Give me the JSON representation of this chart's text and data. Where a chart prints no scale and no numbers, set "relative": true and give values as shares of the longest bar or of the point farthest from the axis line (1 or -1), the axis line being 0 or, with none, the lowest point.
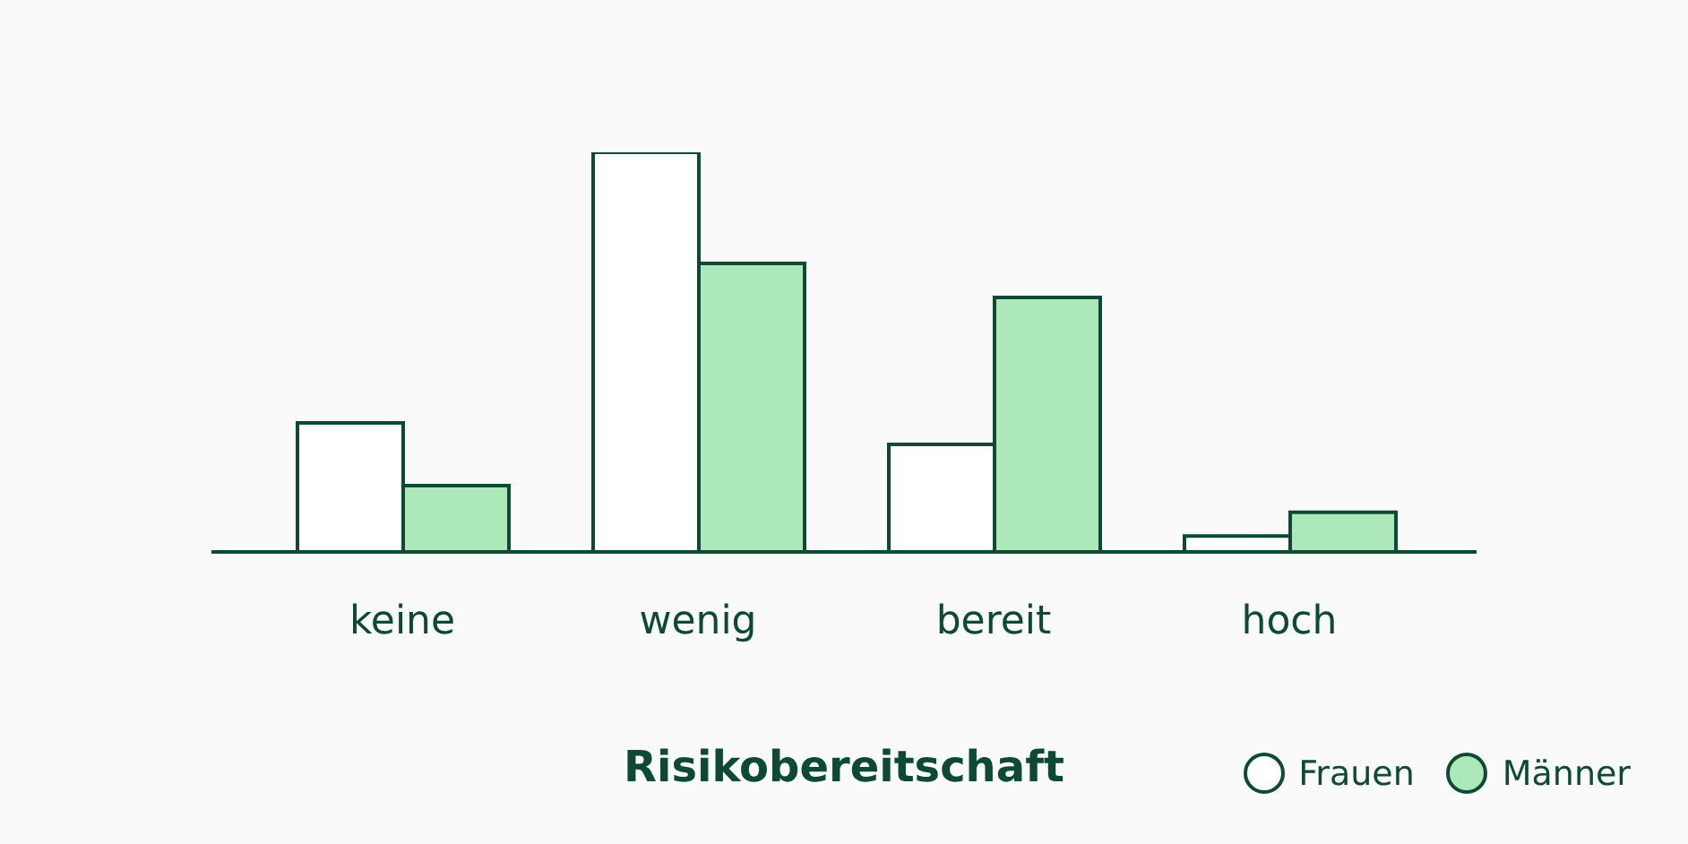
{
  "chart_data": {
    "type": "bar",
    "xlabel": "Risikobereitschaft",
    "categories": [
      "keine",
      "wenig",
      "bereit",
      "hoch"
    ],
    "relative": true,
    "legend": "bottom right",
    "grid": false,
    "series": [
      {
        "name": "Frauen",
        "color": "#ffffff",
        "values": [
          0.323,
          1,
          0.269,
          0.04
        ]
      },
      {
        "name": "Männer",
        "color": "#ade8bb",
        "values": [
          0.166,
          0.722,
          0.637,
          0.099
        ]
      }
    ]
  }
}
